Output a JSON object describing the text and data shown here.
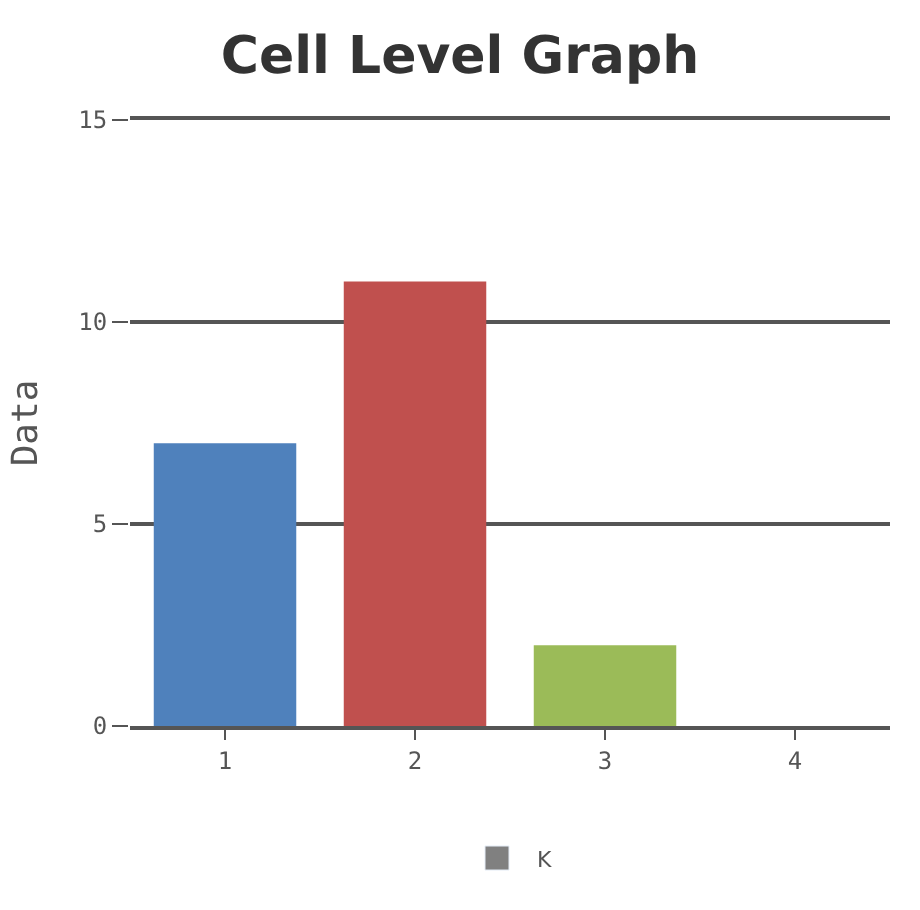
{
  "chart_data": {
    "type": "bar",
    "title": "Cell Level Graph",
    "ylabel": "Data",
    "categories": [
      "1",
      "2",
      "3",
      "4"
    ],
    "series": [
      {
        "name": "K",
        "color": "#808080",
        "colors": [
          "#4f81bc",
          "#c0504e",
          "#9bbb58",
          "#23bfaa"
        ],
        "values": [
          7,
          11,
          2,
          0
        ]
      }
    ],
    "ylim": [
      0,
      15
    ],
    "yticks": [
      0,
      5,
      10,
      15
    ],
    "grid": "y",
    "legend": "bottom"
  }
}
